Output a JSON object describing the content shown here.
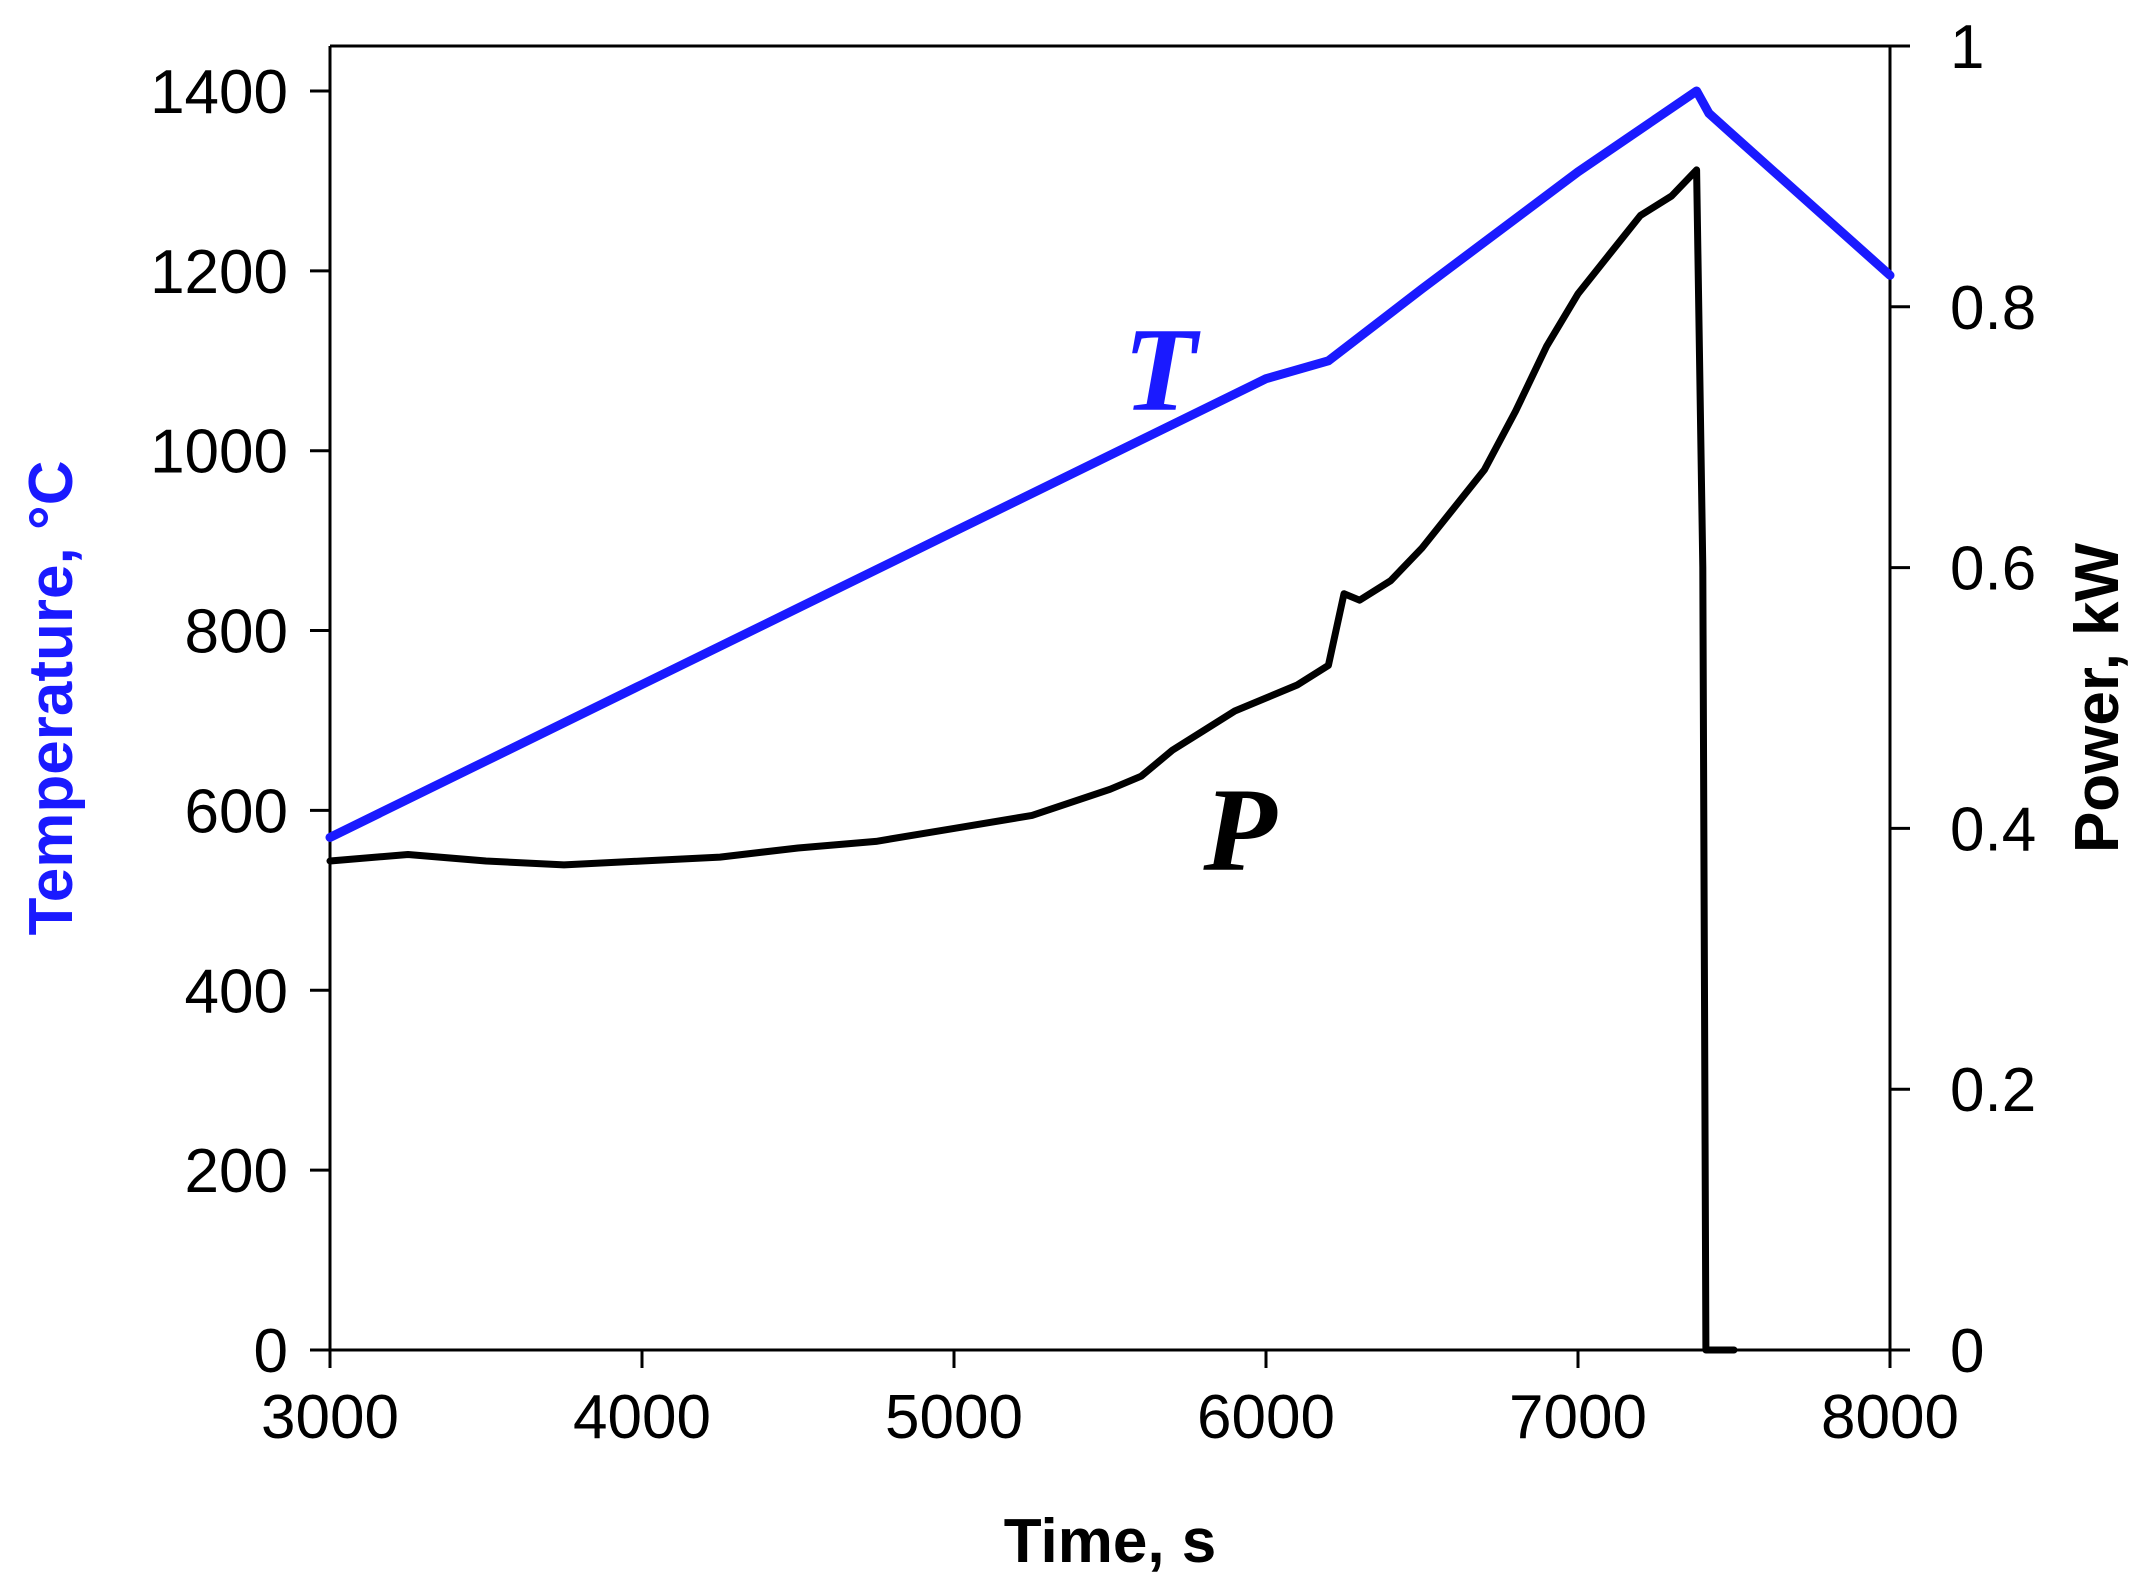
{
  "chart_data": {
    "type": "line",
    "xlabel": "Time, s",
    "ylabel_left": "Temperature, °C",
    "ylabel_right": "Power, kW",
    "xlim": [
      3000,
      8000
    ],
    "ylim_left": [
      0,
      1450
    ],
    "ylim_right": [
      0,
      1
    ],
    "x_ticks": [
      3000,
      4000,
      5000,
      6000,
      7000,
      8000
    ],
    "y_left_ticks": [
      0,
      200,
      400,
      600,
      800,
      1000,
      1200,
      1400
    ],
    "y_right_ticks": [
      0,
      0.2,
      0.4,
      0.6,
      0.8,
      1
    ],
    "y_right_tick_labels": [
      "0",
      "0.2",
      "0.4",
      "0.6",
      "0.8",
      "1"
    ],
    "grid": false,
    "colors": {
      "temperature": "#1a1aff",
      "power": "#000000",
      "axis_left_title": "#1a1aff",
      "axis_right_title": "#000000"
    },
    "series": [
      {
        "name": "T",
        "axis": "left",
        "x": [
          3000,
          3500,
          4000,
          4500,
          5000,
          5500,
          6000,
          6200,
          6500,
          7000,
          7380,
          7420,
          7500,
          8000
        ],
        "values": [
          570,
          655,
          740,
          825,
          910,
          995,
          1080,
          1100,
          1180,
          1310,
          1400,
          1375,
          1350,
          1195
        ]
      },
      {
        "name": "P",
        "axis": "right",
        "x": [
          3000,
          3250,
          3500,
          3750,
          4000,
          4250,
          4500,
          4750,
          5000,
          5250,
          5500,
          5600,
          5700,
          5800,
          5900,
          6000,
          6100,
          6200,
          6250,
          6300,
          6400,
          6500,
          6600,
          6700,
          6800,
          6900,
          7000,
          7100,
          7200,
          7300,
          7380,
          7400,
          7410,
          7500
        ],
        "values": [
          0.375,
          0.38,
          0.375,
          0.372,
          0.375,
          0.378,
          0.385,
          0.39,
          0.4,
          0.41,
          0.43,
          0.44,
          0.46,
          0.475,
          0.49,
          0.5,
          0.51,
          0.525,
          0.58,
          0.575,
          0.59,
          0.615,
          0.645,
          0.675,
          0.72,
          0.77,
          0.81,
          0.84,
          0.87,
          0.885,
          0.905,
          0.6,
          0.0,
          0.0
        ]
      }
    ]
  }
}
